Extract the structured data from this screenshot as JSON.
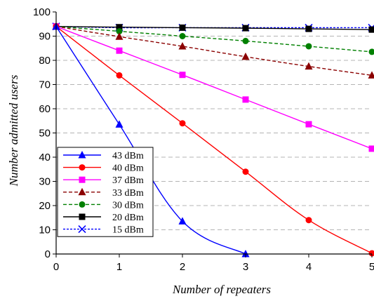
{
  "chart_data": {
    "type": "line",
    "xlabel": "Number of repeaters",
    "ylabel": "Number admitted users",
    "xlim": [
      0,
      5
    ],
    "ylim": [
      0,
      100
    ],
    "xticks": [
      "0",
      "1",
      "2",
      "3",
      "4",
      "5"
    ],
    "yticks": [
      "0",
      "10",
      "20",
      "30",
      "40",
      "50",
      "60",
      "70",
      "80",
      "90",
      "100"
    ],
    "grid": "horizontal dashed",
    "legend_position": "bottom-left",
    "series": [
      {
        "name": "43  dBm",
        "color": "#0000ff",
        "marker": "triangle",
        "dash": "solid",
        "x": [
          0,
          1,
          2,
          3
        ],
        "y": [
          94,
          53.5,
          13.5,
          0
        ]
      },
      {
        "name": "40  dBm",
        "color": "#ff0000",
        "marker": "circle",
        "dash": "solid",
        "x": [
          0,
          1,
          2,
          3,
          4,
          5
        ],
        "y": [
          94,
          73.8,
          54,
          34,
          14,
          0.3
        ]
      },
      {
        "name": "37  dBm",
        "color": "#ff00ff",
        "marker": "square",
        "dash": "solid",
        "x": [
          0,
          1,
          2,
          3,
          4,
          5
        ],
        "y": [
          94,
          84,
          74,
          63.8,
          53.6,
          43.5
        ]
      },
      {
        "name": "33  dBm",
        "color": "#8b0000",
        "marker": "triangle",
        "dash": "dash",
        "x": [
          0,
          1,
          2,
          3,
          4,
          5
        ],
        "y": [
          94,
          89.8,
          85.8,
          81.5,
          77.5,
          73.8
        ]
      },
      {
        "name": "30  dBm",
        "color": "#008000",
        "marker": "circle",
        "dash": "dash",
        "x": [
          0,
          1,
          2,
          3,
          4,
          5
        ],
        "y": [
          94,
          92,
          90,
          88,
          85.8,
          83.5
        ]
      },
      {
        "name": "20  dBm",
        "color": "#000000",
        "marker": "square",
        "dash": "solid",
        "x": [
          0,
          1,
          2,
          3,
          4,
          5
        ],
        "y": [
          94,
          93.7,
          93.5,
          93.3,
          93,
          92.7
        ]
      },
      {
        "name": "15  dBm",
        "color": "#0000ff",
        "marker": "x",
        "dash": "dot",
        "x": [
          0,
          1,
          2,
          3,
          4,
          5
        ],
        "y": [
          94,
          93.5,
          93.5,
          93.5,
          93.5,
          93.5
        ]
      }
    ]
  }
}
